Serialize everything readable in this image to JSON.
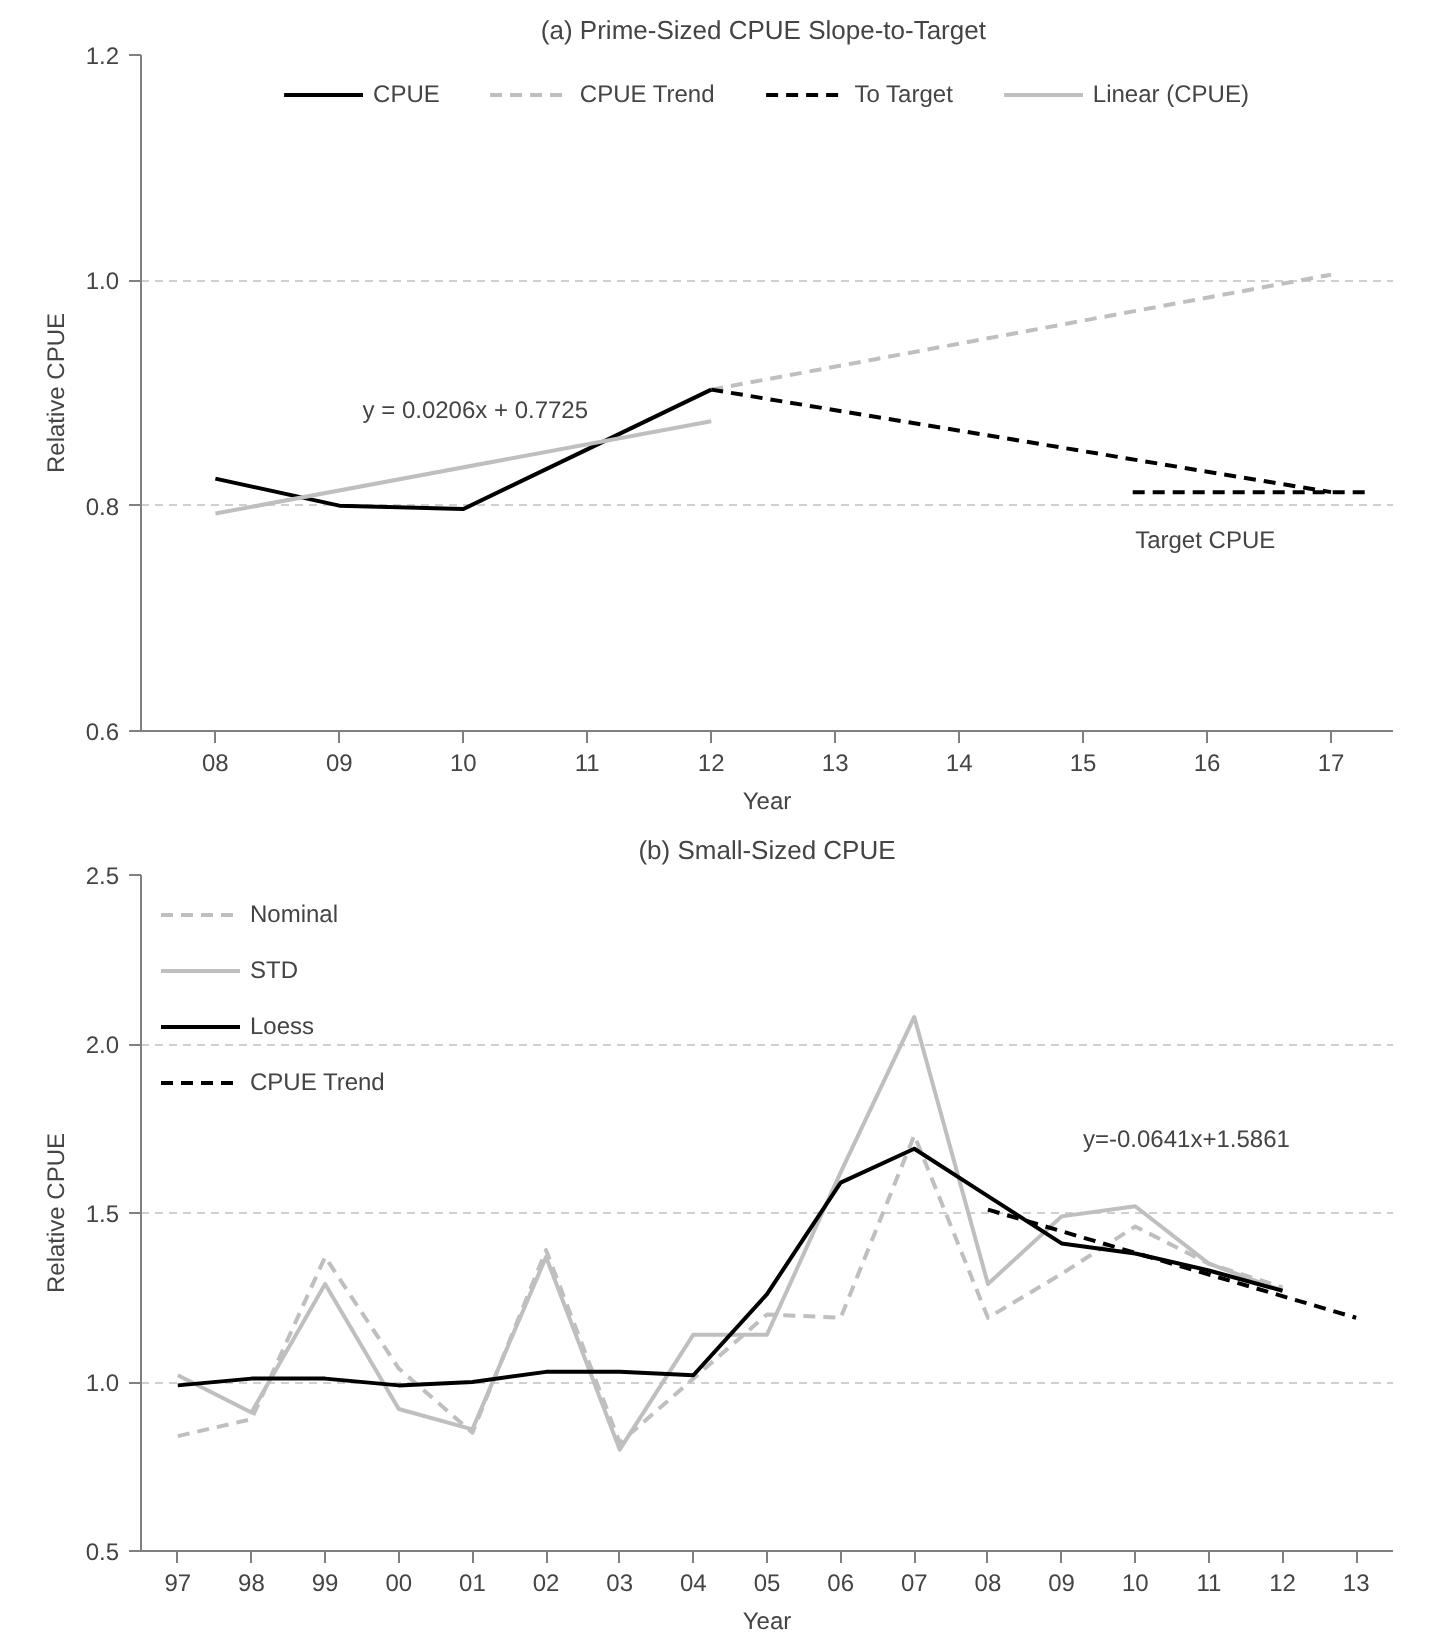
{
  "chart_data": [
    {
      "type": "line",
      "title": "(a) Prime-Sized CPUE  Slope-to-Target",
      "xlabel": "Year",
      "ylabel": "Relative CPUE",
      "xlim": [
        2007.4,
        2017.5
      ],
      "xticks": [
        {
          "value": 2008,
          "label": "08"
        },
        {
          "value": 2009,
          "label": "09"
        },
        {
          "value": 2010,
          "label": "10"
        },
        {
          "value": 2011,
          "label": "11"
        },
        {
          "value": 2012,
          "label": "12"
        },
        {
          "value": 2013,
          "label": "13"
        },
        {
          "value": 2014,
          "label": "14"
        },
        {
          "value": 2015,
          "label": "15"
        },
        {
          "value": 2016,
          "label": "16"
        },
        {
          "value": 2017,
          "label": "17"
        }
      ],
      "ylim": [
        0.6,
        1.2
      ],
      "yticks": [
        {
          "value": 0.6,
          "label": "0.6"
        },
        {
          "value": 0.8,
          "label": "0.8"
        },
        {
          "value": 1.0,
          "label": "1.0"
        },
        {
          "value": 1.2,
          "label": "1.2"
        }
      ],
      "grid": "y",
      "legend": "top",
      "series": [
        {
          "name": "CPUE",
          "color": "#000000",
          "line_style": "solid",
          "x": [
            2008,
            2009,
            2010,
            2011,
            2012
          ],
          "values": [
            0.824,
            0.8,
            0.797,
            0.85,
            0.903
          ]
        },
        {
          "name": "CPUE Trend",
          "color": "#bfbfbf",
          "line_style": "dashed",
          "x": [
            2012,
            2017
          ],
          "values": [
            0.903,
            1.005
          ]
        },
        {
          "name": "To Target",
          "color": "#000000",
          "line_style": "dashed",
          "x": [
            2012,
            2017
          ],
          "values": [
            0.903,
            0.812
          ]
        },
        {
          "name": "Linear (CPUE)",
          "color": "#bfbfbf",
          "line_style": "solid",
          "x": [
            2008,
            2012
          ],
          "values": [
            0.793,
            0.875
          ]
        },
        {
          "color": "#000000",
          "line_style": "dashed",
          "x": [
            2015.4,
            2017.3
          ],
          "values": [
            0.812,
            0.812
          ]
        }
      ],
      "annotations": [
        "y = 0.0206x + 0.7725",
        "Target CPUE"
      ]
    },
    {
      "type": "line",
      "title": "(b) Small-Sized CPUE",
      "xlabel": "Year",
      "ylabel": "Relative CPUE",
      "xlim": [
        1996.5,
        2013.5
      ],
      "xticks": [
        {
          "value": 1997,
          "label": "97"
        },
        {
          "value": 1998,
          "label": "98"
        },
        {
          "value": 1999,
          "label": "99"
        },
        {
          "value": 2000,
          "label": "00"
        },
        {
          "value": 2001,
          "label": "01"
        },
        {
          "value": 2002,
          "label": "02"
        },
        {
          "value": 2003,
          "label": "03"
        },
        {
          "value": 2004,
          "label": "04"
        },
        {
          "value": 2005,
          "label": "05"
        },
        {
          "value": 2006,
          "label": "06"
        },
        {
          "value": 2007,
          "label": "07"
        },
        {
          "value": 2008,
          "label": "08"
        },
        {
          "value": 2009,
          "label": "09"
        },
        {
          "value": 2010,
          "label": "10"
        },
        {
          "value": 2011,
          "label": "11"
        },
        {
          "value": 2012,
          "label": "12"
        },
        {
          "value": 2013,
          "label": "13"
        }
      ],
      "ylim": [
        0.5,
        2.5
      ],
      "yticks": [
        {
          "value": 0.5,
          "label": "0.5"
        },
        {
          "value": 1.0,
          "label": "1.0"
        },
        {
          "value": 1.5,
          "label": "1.5"
        },
        {
          "value": 2.0,
          "label": "2.0"
        },
        {
          "value": 2.5,
          "label": "2.5"
        }
      ],
      "grid": "y",
      "legend": "top left",
      "series": [
        {
          "name": "Nominal",
          "color": "#bfbfbf",
          "line_style": "dashed",
          "x": [
            1997,
            1998,
            1999,
            2000,
            2001,
            2002,
            2003,
            2004,
            2005,
            2006,
            2007,
            2008,
            2009,
            2010,
            2011,
            2012
          ],
          "values": [
            0.84,
            0.89,
            1.37,
            1.04,
            0.85,
            1.39,
            0.82,
            1.01,
            1.2,
            1.19,
            1.73,
            1.19,
            1.32,
            1.46,
            1.35,
            1.28
          ]
        },
        {
          "name": "STD",
          "color": "#bfbfbf",
          "line_style": "solid",
          "x": [
            1997,
            1998,
            1999,
            2000,
            2001,
            2002,
            2003,
            2004,
            2005,
            2006,
            2007,
            2008,
            2009,
            2010,
            2011,
            2012
          ],
          "values": [
            1.02,
            0.91,
            1.29,
            0.92,
            0.86,
            1.37,
            0.8,
            1.14,
            1.14,
            1.62,
            2.08,
            1.29,
            1.49,
            1.52,
            1.35,
            1.27
          ]
        },
        {
          "name": "Loess",
          "color": "#000000",
          "line_style": "solid",
          "x": [
            1997,
            1998,
            1999,
            2000,
            2001,
            2002,
            2003,
            2004,
            2005,
            2006,
            2007,
            2008,
            2009,
            2010,
            2011,
            2012
          ],
          "values": [
            0.99,
            1.01,
            1.01,
            0.99,
            1.0,
            1.03,
            1.03,
            1.02,
            1.26,
            1.59,
            1.69,
            1.55,
            1.41,
            1.38,
            1.33,
            1.27
          ]
        },
        {
          "name": "CPUE Trend",
          "color": "#000000",
          "line_style": "dashed",
          "x": [
            2008,
            2013
          ],
          "values": [
            1.51,
            1.19
          ]
        }
      ],
      "annotations": [
        "y=-0.0641x+1.5861"
      ]
    }
  ]
}
